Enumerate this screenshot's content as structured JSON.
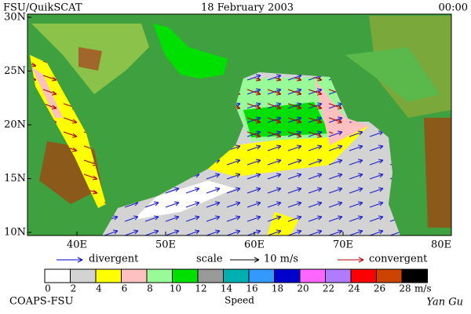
{
  "header": {
    "left": "FSU/QuikSCAT",
    "center": "18 February 2003",
    "right": "00:00"
  },
  "map": {
    "yticks": [
      "30N",
      "25N",
      "20N",
      "15N",
      "10N"
    ],
    "xticks": [
      "40E",
      "50E",
      "60E",
      "70E",
      "80E"
    ]
  },
  "legend": {
    "divergent": "divergent",
    "scale": "scale",
    "scale_value": "10 m/s",
    "convergent": "convergent",
    "divergent_color": "#0000cc",
    "convergent_color": "#b00000"
  },
  "colorbar": {
    "title": "Speed",
    "unit": "m/s",
    "labels": [
      "0",
      "2",
      "4",
      "6",
      "8",
      "10",
      "12",
      "14",
      "16",
      "18",
      "20",
      "22",
      "24",
      "26",
      "28"
    ],
    "colors": [
      "#ffffff",
      "#d3d3d3",
      "#ffff00",
      "#ffc0c0",
      "#98fb98",
      "#00e000",
      "#999999",
      "#00b0b0",
      "#3399ff",
      "#0000cc",
      "#ff66ff",
      "#b07cff",
      "#ff0000",
      "#cc4400",
      "#000000"
    ]
  },
  "footer": {
    "left": "COAPS-FSU",
    "right": "Yan Gu"
  }
}
